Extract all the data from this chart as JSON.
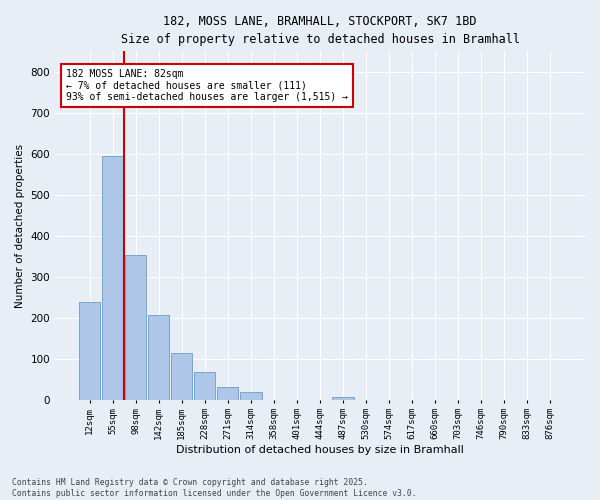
{
  "title_line1": "182, MOSS LANE, BRAMHALL, STOCKPORT, SK7 1BD",
  "title_line2": "Size of property relative to detached houses in Bramhall",
  "xlabel": "Distribution of detached houses by size in Bramhall",
  "ylabel": "Number of detached properties",
  "bin_labels": [
    "12sqm",
    "55sqm",
    "98sqm",
    "142sqm",
    "185sqm",
    "228sqm",
    "271sqm",
    "314sqm",
    "358sqm",
    "401sqm",
    "444sqm",
    "487sqm",
    "530sqm",
    "574sqm",
    "617sqm",
    "660sqm",
    "703sqm",
    "746sqm",
    "790sqm",
    "833sqm",
    "876sqm"
  ],
  "bar_values": [
    237,
    595,
    353,
    207,
    113,
    68,
    30,
    18,
    0,
    0,
    0,
    6,
    0,
    0,
    0,
    0,
    0,
    0,
    0,
    0,
    0
  ],
  "bar_color": "#aec6e8",
  "bar_edge_color": "#5a8fc0",
  "background_color": "#e8eef5",
  "grid_color": "#ffffff",
  "property_line_x": 1.5,
  "property_line_label": "182 MOSS LANE: 82sqm",
  "annotation_line2": "← 7% of detached houses are smaller (111)",
  "annotation_line3": "93% of semi-detached houses are larger (1,515) →",
  "annotation_box_color": "#ffffff",
  "annotation_box_edge": "#cc0000",
  "vline_color": "#cc0000",
  "ylim": [
    0,
    850
  ],
  "yticks": [
    0,
    100,
    200,
    300,
    400,
    500,
    600,
    700,
    800
  ],
  "footer_line1": "Contains HM Land Registry data © Crown copyright and database right 2025.",
  "footer_line2": "Contains public sector information licensed under the Open Government Licence v3.0."
}
